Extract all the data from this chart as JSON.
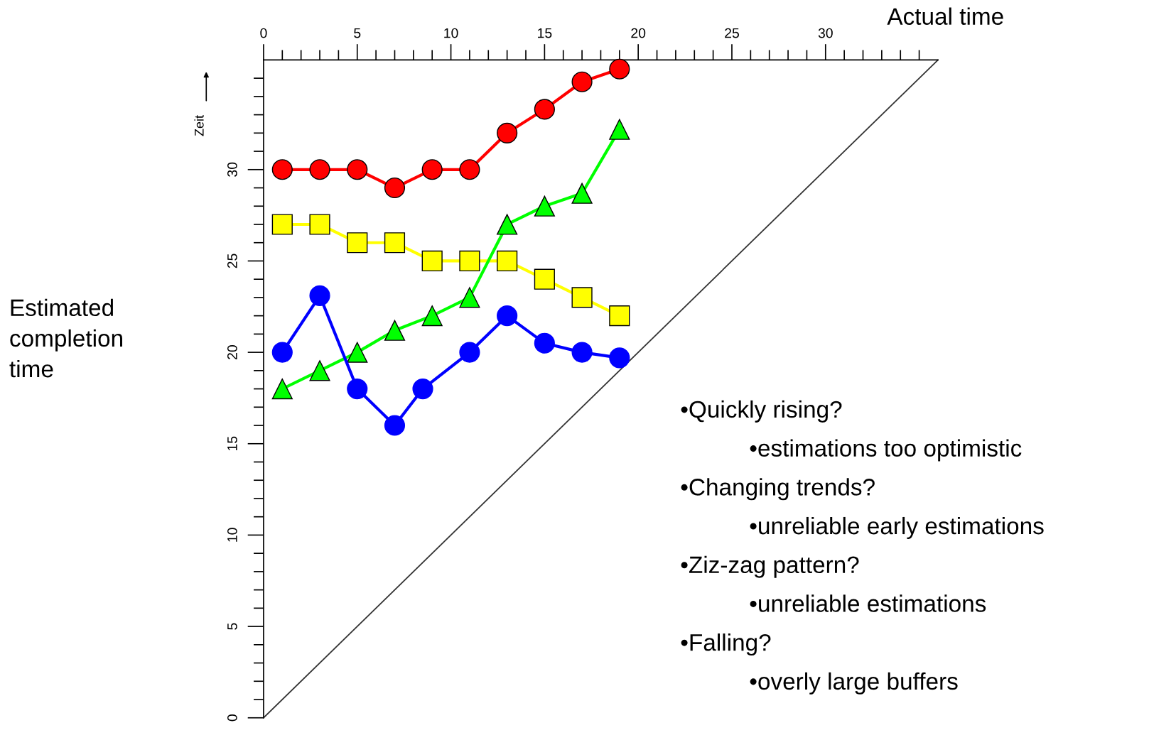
{
  "chart_data": {
    "type": "line",
    "ylabel": "Zeit",
    "annotations": [
      "Actual time",
      "Estimated completion time",
      "•Quickly rising?",
      "•estimations too optimistic",
      "•Changing trends?",
      "•unreliable early estimations",
      "•Ziz-zag pattern?",
      "•unreliable estimations",
      "•Falling?",
      "•overly large buffers"
    ],
    "x": [
      1,
      3,
      5,
      7,
      9,
      11,
      13,
      15,
      17,
      19
    ],
    "series": [
      {
        "color": "#ff0000",
        "marker": "circle",
        "values": [
          30,
          30,
          30,
          29,
          30,
          30,
          32,
          33.3,
          34.8,
          35.5
        ]
      },
      {
        "color": "#ffff00",
        "marker": "square",
        "values": [
          27,
          27,
          26,
          26,
          25,
          25,
          25,
          24,
          23,
          22
        ]
      },
      {
        "color": "#00ff00",
        "marker": "triangle",
        "values": [
          18,
          19,
          20,
          21.2,
          22,
          23,
          27,
          28,
          28.7,
          32.2
        ]
      },
      {
        "color": "#0000ff",
        "marker": "circle",
        "x": [
          1,
          3,
          5,
          7,
          8.5,
          11,
          13,
          15,
          17,
          19
        ],
        "values": [
          20,
          23.1,
          18,
          16,
          18,
          20,
          22,
          20.5,
          20,
          19.7
        ]
      },
      {
        "color": "#333333",
        "marker": "none",
        "x": [
          0,
          36
        ],
        "values": [
          0,
          36
        ]
      }
    ],
    "xlim": [
      0,
      36
    ],
    "ylim": [
      0,
      36
    ],
    "xticks": [
      0,
      {
        "value": 1,
        "label": null
      },
      {
        "value": 2,
        "label": null
      },
      {
        "value": 3,
        "label": null
      },
      {
        "value": 4,
        "label": null
      },
      5,
      {
        "value": 6,
        "label": null
      },
      {
        "value": 7,
        "label": null
      },
      {
        "value": 8,
        "label": null
      },
      {
        "value": 9,
        "label": null
      },
      10,
      {
        "value": 11,
        "label": null
      },
      {
        "value": 12,
        "label": null
      },
      {
        "value": 13,
        "label": null
      },
      {
        "value": 14,
        "label": null
      },
      15,
      {
        "value": 16,
        "label": null
      },
      {
        "value": 17,
        "label": null
      },
      {
        "value": 18,
        "label": null
      },
      {
        "value": 19,
        "label": null
      },
      20,
      {
        "value": 21,
        "label": null
      },
      {
        "value": 22,
        "label": null
      },
      {
        "value": 23,
        "label": null
      },
      {
        "value": 24,
        "label": null
      },
      25,
      {
        "value": 26,
        "label": null
      },
      {
        "value": 27,
        "label": null
      },
      {
        "value": 28,
        "label": null
      },
      {
        "value": 29,
        "label": null
      },
      30,
      {
        "value": 31,
        "label": null
      },
      {
        "value": 32,
        "label": null
      },
      {
        "value": 33,
        "label": null
      },
      {
        "value": 34,
        "label": null
      },
      {
        "value": 35,
        "label": null
      }
    ],
    "yticks": [
      0,
      {
        "value": 1,
        "label": null
      },
      {
        "value": 2,
        "label": null
      },
      {
        "value": 3,
        "label": null
      },
      {
        "value": 4,
        "label": null
      },
      5,
      {
        "value": 6,
        "label": null
      },
      {
        "value": 7,
        "label": null
      },
      {
        "value": 8,
        "label": null
      },
      {
        "value": 9,
        "label": null
      },
      10,
      {
        "value": 11,
        "label": null
      },
      {
        "value": 12,
        "label": null
      },
      {
        "value": 13,
        "label": null
      },
      {
        "value": 14,
        "label": null
      },
      15,
      {
        "value": 16,
        "label": null
      },
      {
        "value": 17,
        "label": null
      },
      {
        "value": 18,
        "label": null
      },
      {
        "value": 19,
        "label": null
      },
      20,
      {
        "value": 21,
        "label": null
      },
      {
        "value": 22,
        "label": null
      },
      {
        "value": 23,
        "label": null
      },
      {
        "value": 24,
        "label": null
      },
      25,
      {
        "value": 26,
        "label": null
      },
      {
        "value": 27,
        "label": null
      },
      {
        "value": 28,
        "label": null
      },
      {
        "value": 29,
        "label": null
      },
      30,
      {
        "value": 31,
        "label": null
      },
      {
        "value": 32,
        "label": null
      },
      {
        "value": 33,
        "label": null
      },
      {
        "value": 34,
        "label": null
      },
      {
        "value": 35,
        "label": null
      }
    ],
    "grid": false,
    "legend": false
  }
}
